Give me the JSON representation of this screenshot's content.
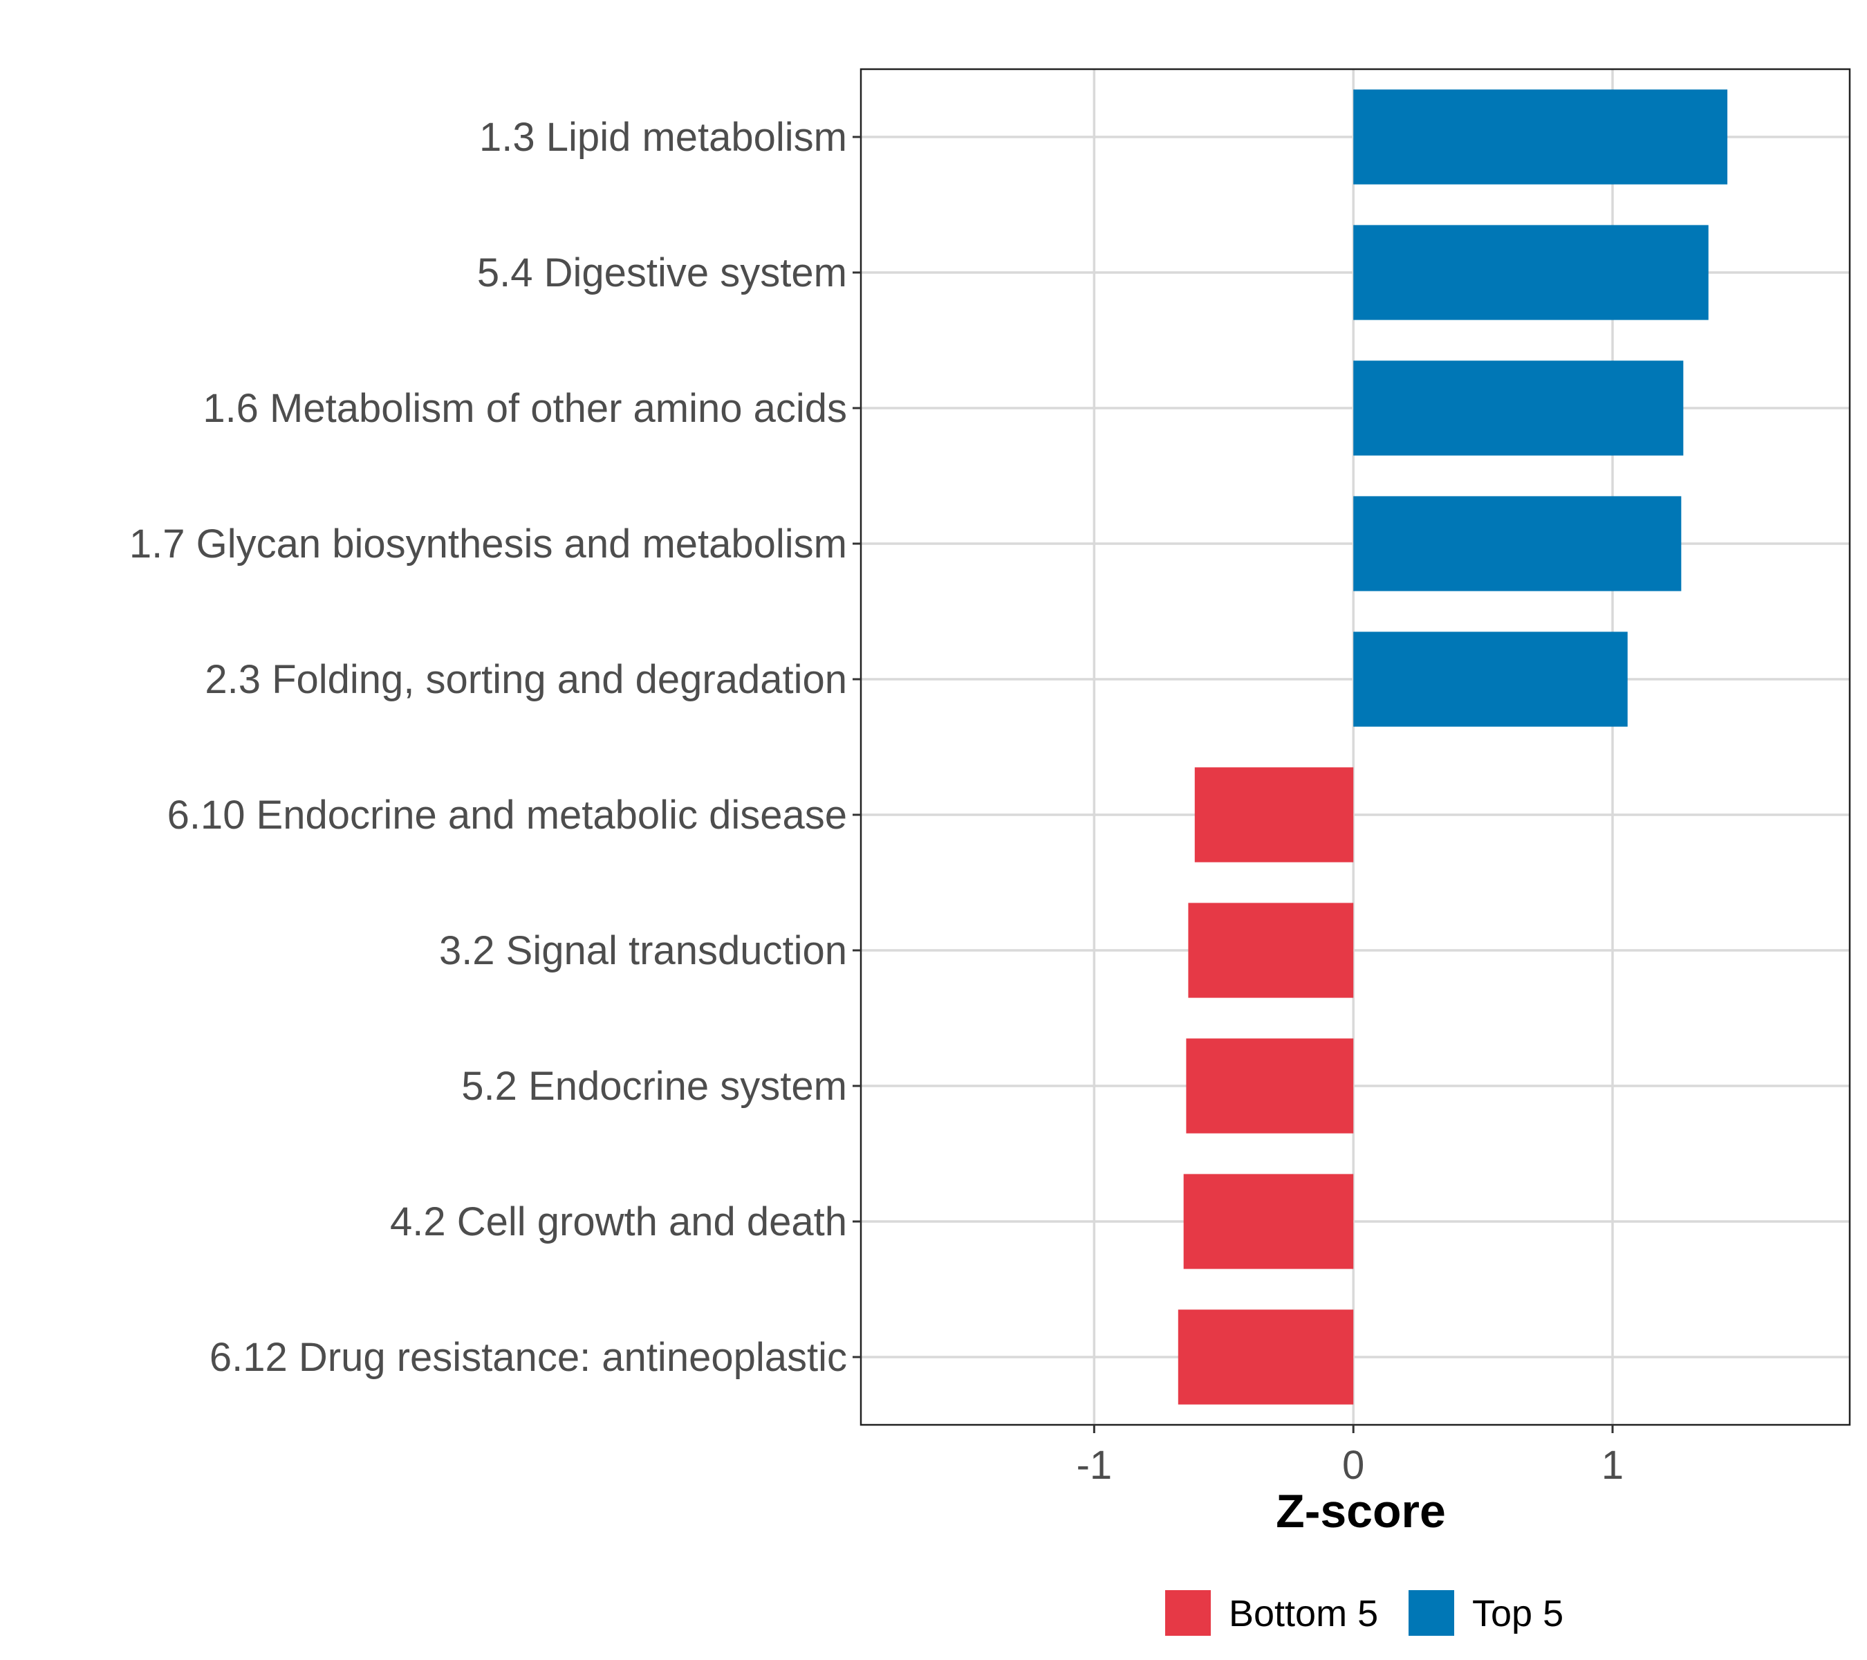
{
  "chart_data": {
    "type": "bar",
    "orientation": "horizontal",
    "title": "",
    "xlabel": "Z-score",
    "ylabel": "",
    "xlim": [
      -1.9,
      1.915
    ],
    "xticks": [
      -1,
      0,
      1
    ],
    "xtick_labels": [
      "-1",
      "0",
      "1"
    ],
    "grid": true,
    "categories": [
      "1.3 Lipid metabolism",
      "5.4 Digestive system",
      "1.6 Metabolism of other amino acids",
      "1.7 Glycan biosynthesis and metabolism",
      "2.3 Folding, sorting and degradation",
      "6.10 Endocrine and metabolic disease",
      "3.2 Signal transduction",
      "5.2 Endocrine system",
      "4.2 Cell growth and death",
      "6.12 Drug resistance: antineoplastic"
    ],
    "values": [
      1.443,
      1.37,
      1.273,
      1.265,
      1.058,
      -0.612,
      -0.637,
      -0.645,
      -0.655,
      -0.676
    ],
    "groups": [
      "Top 5",
      "Top 5",
      "Top 5",
      "Top 5",
      "Top 5",
      "Bottom 5",
      "Bottom 5",
      "Bottom 5",
      "Bottom 5",
      "Bottom 5"
    ],
    "legend": {
      "position": "bottom",
      "entries": [
        {
          "label": "Bottom 5",
          "color": "#E63946"
        },
        {
          "label": "Top 5",
          "color": "#0077B6"
        }
      ]
    }
  }
}
